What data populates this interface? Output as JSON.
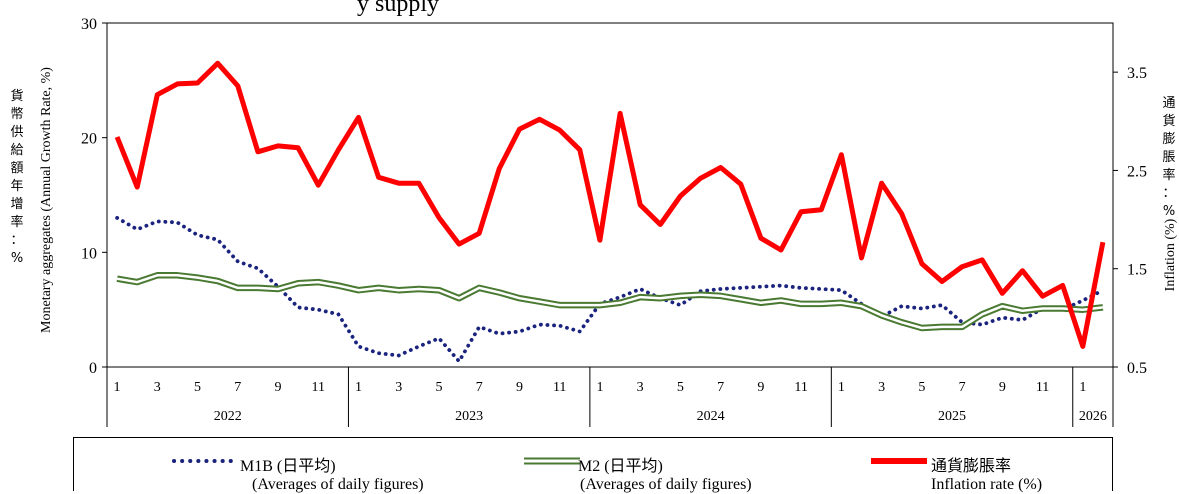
{
  "chart_data": {
    "type": "line",
    "title": "y supply",
    "y_left": {
      "label_en": "Monetary aggregates (Annual Growth Rate, %)",
      "label_zh": [
        "貨",
        "幣",
        "供",
        "給",
        "額",
        "年",
        "增",
        "率",
        "：",
        "%"
      ],
      "range": [
        0,
        30
      ],
      "ticks": [
        "0",
        "10",
        "20",
        "30"
      ]
    },
    "y_right": {
      "label_en": "Inflation (%)",
      "label_zh": [
        "通",
        "貨",
        "膨",
        "脹",
        "率",
        "：",
        "%"
      ],
      "range": [
        0.5,
        4.0
      ],
      "ticks": [
        "0.5",
        "1.5",
        "2.5",
        "3.5"
      ]
    },
    "x_month_ticks": [
      [
        "1",
        "3",
        "5",
        "7",
        "9",
        "11"
      ],
      [
        "1",
        "3",
        "5",
        "7",
        "9",
        "11"
      ],
      [
        "1",
        "3",
        "5",
        "7",
        "9",
        "11"
      ],
      [
        "1",
        "3",
        "5",
        "7",
        "9",
        "11"
      ],
      [
        "1"
      ]
    ],
    "years": [
      "2022",
      "2023",
      "2024",
      "2025",
      "2026"
    ],
    "series": [
      {
        "name": "M1B (日平均)",
        "axis": "left",
        "style": "dotted",
        "color": "#1a237e",
        "values": [
          13.0,
          12.0,
          12.7,
          12.6,
          11.5,
          11.1,
          9.2,
          8.6,
          7.0,
          5.2,
          5.0,
          4.6,
          1.8,
          1.2,
          1.0,
          1.8,
          2.5,
          0.5,
          3.5,
          2.9,
          3.1,
          3.7,
          3.6,
          3.1,
          5.5,
          6.1,
          6.8,
          6.0,
          5.4,
          6.6,
          6.8,
          6.9,
          7.0,
          7.1,
          6.9,
          6.8,
          6.7,
          5.5,
          4.4,
          5.3,
          5.1,
          5.4,
          3.9,
          3.7,
          4.3,
          4.1,
          5.1,
          5.0,
          5.8,
          6.7
        ]
      },
      {
        "name": "M2 (日平均)",
        "axis": "left",
        "style": "double",
        "color": "#4a7a32",
        "values": [
          7.7,
          7.4,
          8.0,
          8.0,
          7.8,
          7.5,
          6.9,
          6.9,
          6.8,
          7.3,
          7.4,
          7.1,
          6.7,
          6.9,
          6.7,
          6.8,
          6.7,
          6.0,
          6.9,
          6.5,
          6.0,
          5.7,
          5.4,
          5.4,
          5.4,
          5.6,
          6.1,
          6.0,
          6.2,
          6.3,
          6.2,
          5.9,
          5.6,
          5.8,
          5.5,
          5.5,
          5.6,
          5.3,
          4.5,
          3.9,
          3.4,
          3.5,
          3.5,
          4.6,
          5.3,
          4.9,
          5.1,
          5.1,
          5.0,
          5.2
        ]
      },
      {
        "name": "通貨膨脹率",
        "axis": "right",
        "style": "solid",
        "color": "#ff0000",
        "values": [
          2.84,
          2.33,
          3.27,
          3.38,
          3.39,
          3.59,
          3.36,
          2.69,
          2.75,
          2.73,
          2.35,
          2.71,
          3.04,
          2.43,
          2.37,
          2.37,
          2.02,
          1.75,
          1.86,
          2.52,
          2.92,
          3.02,
          2.91,
          2.71,
          1.79,
          3.08,
          2.15,
          1.95,
          2.24,
          2.42,
          2.53,
          2.36,
          1.81,
          1.69,
          2.08,
          2.1,
          2.66,
          1.61,
          2.37,
          2.06,
          1.55,
          1.37,
          1.52,
          1.59,
          1.25,
          1.48,
          1.22,
          1.33,
          0.71,
          1.77
        ]
      }
    ],
    "legend": [
      {
        "name": "M1B (日平均)",
        "sub": "(Averages of daily figures)"
      },
      {
        "name": "M2 (日平均)",
        "sub": "(Averages of daily figures)"
      },
      {
        "name": "通貨膨脹率",
        "sub": "Inflation rate (%)"
      }
    ]
  }
}
